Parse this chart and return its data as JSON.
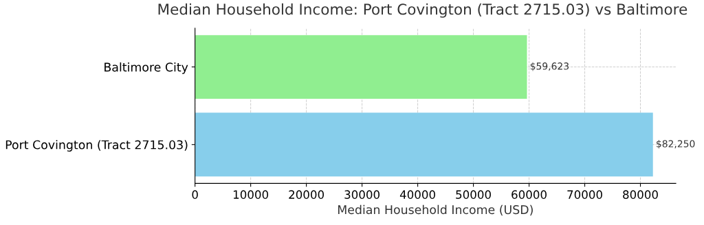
{
  "chart_data": {
    "type": "bar",
    "orientation": "horizontal",
    "title": "Median Household Income: Port Covington (Tract 2715.03) vs Baltimore",
    "xlabel": "Median Household Income (USD)",
    "categories": [
      "Baltimore City",
      "Port Covington (Tract 2715.03)"
    ],
    "values": [
      59623,
      82250
    ],
    "colors": [
      "#90ee90",
      "#87ceeb"
    ],
    "value_labels": [
      "$59,623",
      "$82,250"
    ],
    "xlim": [
      0,
      86362
    ],
    "xticks": [
      0,
      10000,
      20000,
      30000,
      40000,
      50000,
      60000,
      70000,
      80000
    ],
    "grid": true
  }
}
